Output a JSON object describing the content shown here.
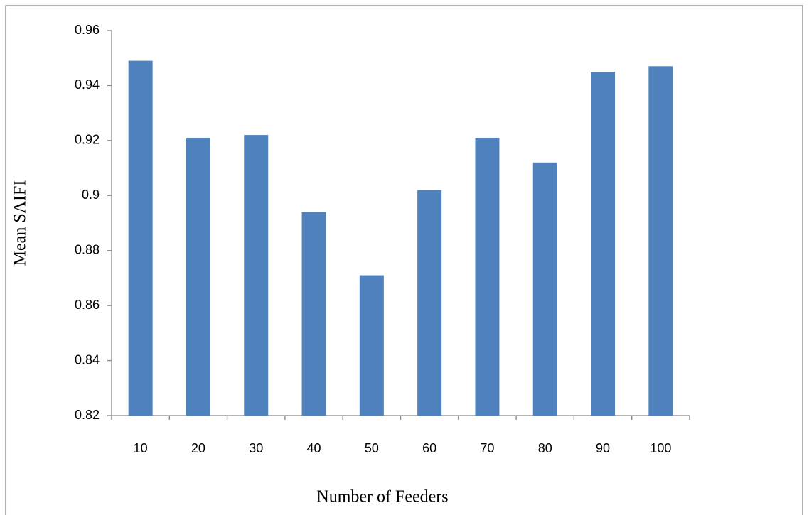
{
  "chart_data": {
    "type": "bar",
    "x_label": "Number of Feeders",
    "y_label": "Mean SAIFI",
    "categories": [
      "10",
      "20",
      "30",
      "40",
      "50",
      "60",
      "70",
      "80",
      "90",
      "100"
    ],
    "values": [
      0.949,
      0.921,
      0.922,
      0.894,
      0.871,
      0.902,
      0.921,
      0.912,
      0.945,
      0.947
    ],
    "color": "#4f81bd",
    "ylim": [
      0.82,
      0.96
    ],
    "yticks": [
      0.82,
      0.84,
      0.86,
      0.88,
      0.9,
      0.92,
      0.94,
      0.96
    ],
    "grid": false
  }
}
